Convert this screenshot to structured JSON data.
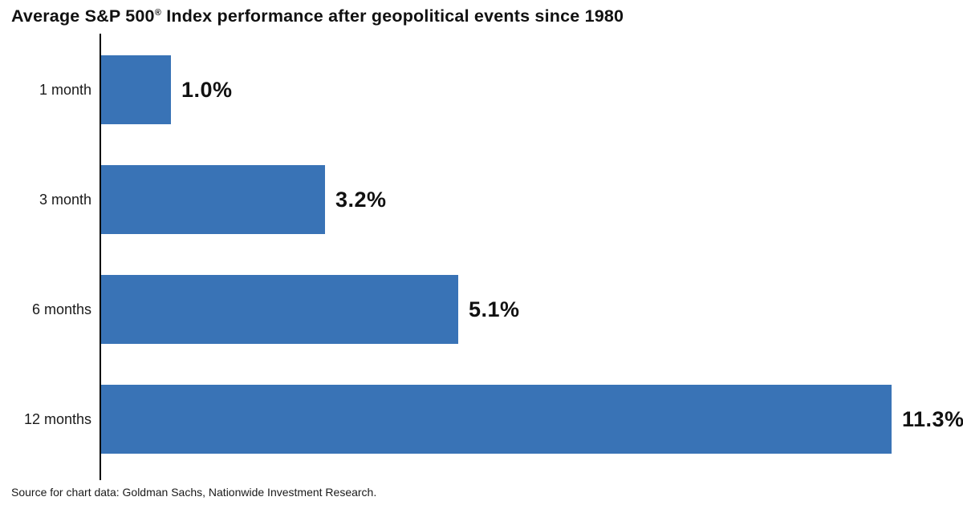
{
  "title": {
    "prefix": "Average S&P 500",
    "reg_mark": "®",
    "suffix": " Index performance after geopolitical events since 1980"
  },
  "source_note": "Source for chart data: Goldman Sachs, Nationwide Investment Research.",
  "colors": {
    "bar": "#3973B6",
    "axis": "#000000",
    "text": "#1A1A1A"
  },
  "chart_data": {
    "type": "bar",
    "orientation": "horizontal",
    "title": "Average S&P 500® Index performance after geopolitical events since 1980",
    "categories": [
      "1 month",
      "3 month",
      "6 months",
      "12 months"
    ],
    "values": [
      1.0,
      3.2,
      5.1,
      11.3
    ],
    "value_labels": [
      "1.0%",
      "3.2%",
      "5.1%",
      "11.3%"
    ],
    "unit": "%",
    "xlabel": "",
    "ylabel": "",
    "xlim": [
      0,
      11.3
    ],
    "grid": false,
    "legend": false,
    "annotations": "Source for chart data: Goldman Sachs, Nationwide Investment Research."
  }
}
